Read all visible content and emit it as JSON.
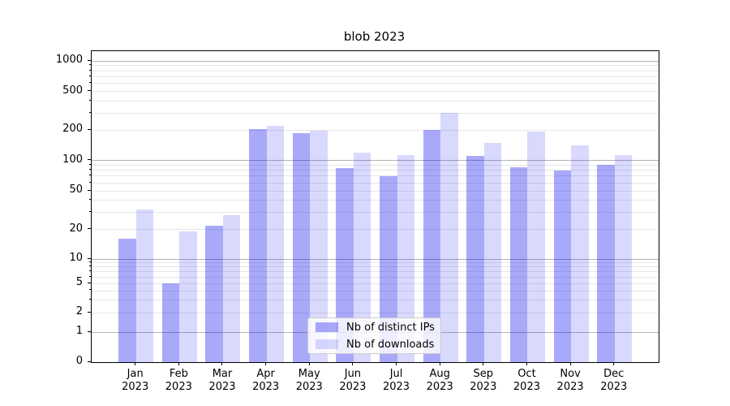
{
  "chart_data": {
    "type": "bar",
    "title": "blob 2023",
    "categories": [
      "Jan 2023",
      "Feb 2023",
      "Mar 2023",
      "Apr 2023",
      "May 2023",
      "Jun 2023",
      "Jul 2023",
      "Aug 2023",
      "Sep 2023",
      "Oct 2023",
      "Nov 2023",
      "Dec 2023"
    ],
    "series": [
      {
        "name": "Nb of distinct IPs",
        "color": "rgba(10,10,240,0.35)",
        "color_hex": "#a8a8f9",
        "values": [
          16,
          5,
          22,
          205,
          188,
          84,
          70,
          203,
          111,
          86,
          80,
          91
        ]
      },
      {
        "name": "Nb of downloads",
        "color": "rgba(10,10,240,0.155)",
        "color_hex": "#dadafb",
        "values": [
          32,
          19,
          28,
          222,
          196,
          120,
          113,
          300,
          150,
          195,
          142,
          114
        ]
      }
    ],
    "xlabel": "",
    "ylabel": "",
    "yscale": "symlog",
    "y_ticks": [
      0,
      1,
      2,
      5,
      10,
      20,
      50,
      100,
      200,
      500,
      1000
    ],
    "ylim": [
      0,
      1450
    ],
    "grid": "both",
    "legend_position": "lower center",
    "major_grid_color": "#b3b3b3",
    "minor_grid_color": "#e7e7e7"
  }
}
